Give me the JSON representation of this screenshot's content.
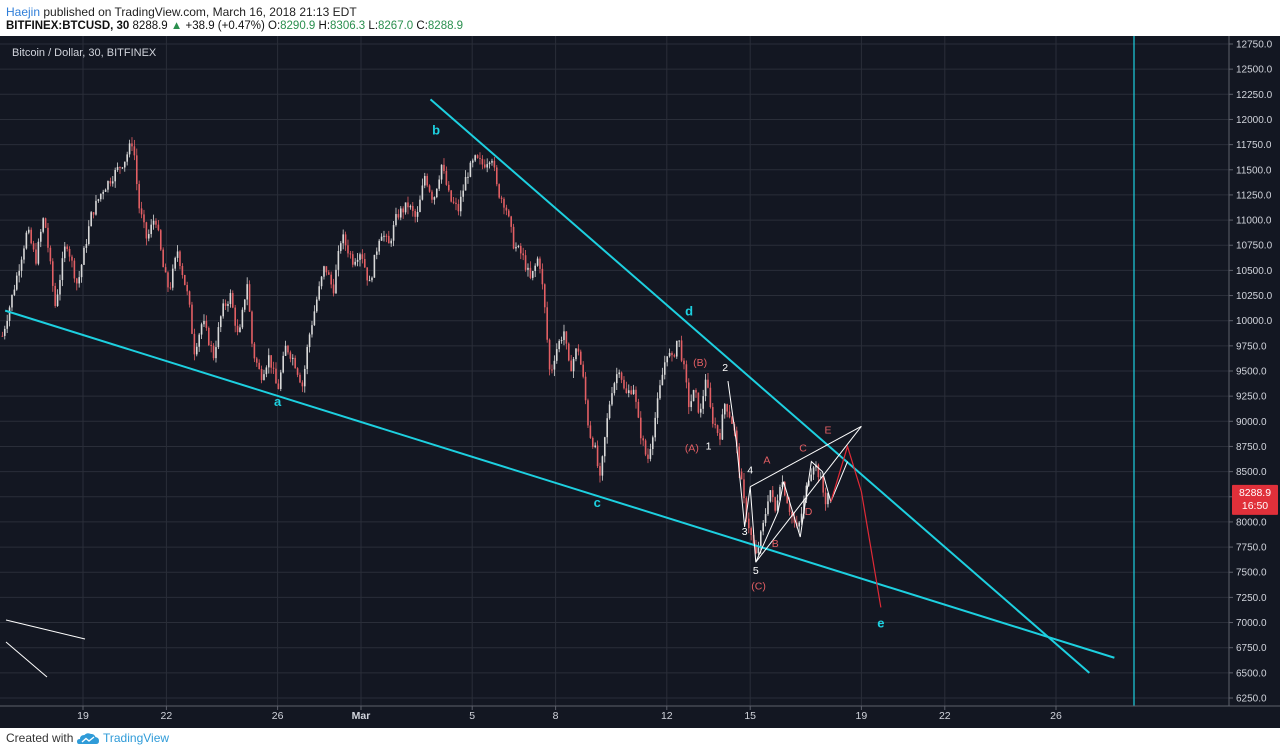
{
  "header": {
    "author": "Haejin",
    "published": "published on TradingView.com, March 16, 2018 21:13 EDT",
    "symbol": "BITFINEX:BTCUSD, 30",
    "last": "8288.9",
    "change": "+38.9 (+0.47%)",
    "o_label": "O:",
    "o": "8290.9",
    "h_label": "H:",
    "h": "8306.3",
    "l_label": "L:",
    "l": "8267.0",
    "c_label": "C:",
    "c": "8288.9"
  },
  "footer": {
    "created": "Created with",
    "brand": "TradingView"
  },
  "colors": {
    "background": "#131722",
    "grid": "#2a2e39",
    "up": "#d9d9d9",
    "down": "#e35f64",
    "trendline": "#1dd0e0",
    "wave": "#ffffff",
    "projection": "#e02a37",
    "price_badge": "#e0303a"
  },
  "chart_data": {
    "type": "candlestick",
    "title": "Bitcoin / Dollar, 30, BITFINEX",
    "price_axis": {
      "min": 6250,
      "max": 12750,
      "step": 250,
      "ticks": [
        "12750.0",
        "12500.0",
        "12250.0",
        "12000.0",
        "11750.0",
        "11500.0",
        "11250.0",
        "11000.0",
        "10750.0",
        "10500.0",
        "10250.0",
        "10000.0",
        "9750.0",
        "9500.0",
        "9250.0",
        "9000.0",
        "8750.0",
        "8500.0",
        "8250.0",
        "8000.0",
        "7750.0",
        "7500.0",
        "7250.0",
        "7000.0",
        "6750.0",
        "6500.0",
        "6250.0"
      ]
    },
    "time_axis": {
      "ticks": [
        {
          "label": "19",
          "day": 19
        },
        {
          "label": "22",
          "day": 22
        },
        {
          "label": "26",
          "day": 26
        },
        {
          "label": "Mar",
          "day": 29
        },
        {
          "label": "5",
          "day": 33
        },
        {
          "label": "8",
          "day": 36
        },
        {
          "label": "12",
          "day": 40
        },
        {
          "label": "15",
          "day": 43
        },
        {
          "label": "19",
          "day": 47
        },
        {
          "label": "22",
          "day": 50
        },
        {
          "label": "26",
          "day": 54
        }
      ]
    },
    "price_path": [
      [
        16.1,
        9850
      ],
      [
        16.5,
        10300
      ],
      [
        17.0,
        10900
      ],
      [
        17.3,
        10600
      ],
      [
        17.6,
        11050
      ],
      [
        18.0,
        10150
      ],
      [
        18.4,
        10800
      ],
      [
        18.8,
        10350
      ],
      [
        19.3,
        11050
      ],
      [
        19.7,
        11300
      ],
      [
        20.1,
        11450
      ],
      [
        20.5,
        11600
      ],
      [
        20.8,
        11800
      ],
      [
        21.0,
        11150
      ],
      [
        21.3,
        10800
      ],
      [
        21.6,
        11050
      ],
      [
        21.9,
        10500
      ],
      [
        22.1,
        10300
      ],
      [
        22.4,
        10700
      ],
      [
        22.8,
        10200
      ],
      [
        23.0,
        9700
      ],
      [
        23.3,
        10000
      ],
      [
        23.7,
        9650
      ],
      [
        24.0,
        10100
      ],
      [
        24.3,
        10250
      ],
      [
        24.6,
        9800
      ],
      [
        24.9,
        10400
      ],
      [
        25.1,
        9700
      ],
      [
        25.4,
        9450
      ],
      [
        25.7,
        9650
      ],
      [
        26.0,
        9300
      ],
      [
        26.3,
        9750
      ],
      [
        26.6,
        9600
      ],
      [
        26.9,
        9350
      ],
      [
        27.1,
        9800
      ],
      [
        27.4,
        10200
      ],
      [
        27.7,
        10550
      ],
      [
        28.0,
        10300
      ],
      [
        28.3,
        10850
      ],
      [
        28.7,
        10600
      ],
      [
        29.0,
        10700
      ],
      [
        29.3,
        10350
      ],
      [
        29.7,
        10900
      ],
      [
        30.0,
        10750
      ],
      [
        30.3,
        11050
      ],
      [
        30.7,
        11150
      ],
      [
        31.0,
        11000
      ],
      [
        31.3,
        11450
      ],
      [
        31.6,
        11200
      ],
      [
        31.9,
        11550
      ],
      [
        32.2,
        11200
      ],
      [
        32.5,
        11100
      ],
      [
        32.8,
        11450
      ],
      [
        33.1,
        11600
      ],
      [
        33.4,
        11550
      ],
      [
        33.7,
        11650
      ],
      [
        33.9,
        11300
      ],
      [
        34.2,
        11150
      ],
      [
        34.5,
        10750
      ],
      [
        34.8,
        10650
      ],
      [
        35.1,
        10400
      ],
      [
        35.4,
        10650
      ],
      [
        35.6,
        10150
      ],
      [
        35.8,
        9450
      ],
      [
        36.0,
        9700
      ],
      [
        36.3,
        9900
      ],
      [
        36.5,
        9500
      ],
      [
        36.8,
        9750
      ],
      [
        37.0,
        9400
      ],
      [
        37.2,
        8900
      ],
      [
        37.4,
        8750
      ],
      [
        37.6,
        8400
      ],
      [
        37.8,
        8900
      ],
      [
        38.0,
        9300
      ],
      [
        38.3,
        9550
      ],
      [
        38.5,
        9250
      ],
      [
        38.8,
        9350
      ],
      [
        39.0,
        8950
      ],
      [
        39.3,
        8600
      ],
      [
        39.5,
        8900
      ],
      [
        39.8,
        9400
      ],
      [
        40.0,
        9700
      ],
      [
        40.2,
        9600
      ],
      [
        40.4,
        9850
      ],
      [
        40.6,
        9550
      ],
      [
        40.8,
        9150
      ],
      [
        41.0,
        9300
      ],
      [
        41.2,
        9050
      ],
      [
        41.4,
        9450
      ],
      [
        41.6,
        9050
      ],
      [
        41.9,
        8850
      ],
      [
        42.1,
        9200
      ],
      [
        42.4,
        8950
      ],
      [
        42.6,
        8550
      ],
      [
        42.8,
        8150
      ],
      [
        43.0,
        7900
      ],
      [
        43.2,
        7650
      ],
      [
        43.5,
        8000
      ],
      [
        43.7,
        8350
      ],
      [
        43.9,
        8100
      ],
      [
        44.1,
        8450
      ],
      [
        44.3,
        8250
      ],
      [
        44.5,
        8050
      ],
      [
        44.7,
        7900
      ],
      [
        44.9,
        8150
      ],
      [
        45.1,
        8450
      ],
      [
        45.3,
        8600
      ],
      [
        45.5,
        8450
      ],
      [
        45.7,
        8200
      ],
      [
        45.8,
        8290
      ]
    ],
    "trendlines": [
      {
        "name": "upper",
        "from": [
          31.5,
          12200
        ],
        "to": [
          55.2,
          6500
        ]
      },
      {
        "name": "lower",
        "from": [
          16.2,
          10100
        ],
        "to": [
          56.1,
          6650
        ]
      }
    ],
    "wave_path": [
      [
        42.2,
        9400
      ],
      [
        42.5,
        8800
      ],
      [
        42.8,
        7950
      ],
      [
        43.0,
        8350
      ],
      [
        43.2,
        7600
      ],
      [
        44.0,
        8100
      ],
      [
        44.2,
        8400
      ],
      [
        44.8,
        7850
      ],
      [
        45.2,
        8600
      ],
      [
        45.6,
        8500
      ],
      [
        45.9,
        8200
      ],
      [
        46.5,
        8600
      ]
    ],
    "wave_lines": [
      {
        "from": [
          43.2,
          7600
        ],
        "to": [
          47.0,
          8950
        ]
      },
      {
        "from": [
          43.0,
          8350
        ],
        "to": [
          47.0,
          8950
        ]
      }
    ],
    "projection_path": [
      [
        45.9,
        8200
      ],
      [
        46.5,
        8750
      ],
      [
        47.0,
        8300
      ],
      [
        47.7,
        7150
      ]
    ],
    "labels": [
      {
        "text": "b",
        "day": 31.7,
        "price": 11850,
        "color": "cyan"
      },
      {
        "text": "a",
        "day": 26.0,
        "price": 9150,
        "color": "cyan"
      },
      {
        "text": "c",
        "day": 37.5,
        "price": 8150,
        "color": "cyan"
      },
      {
        "text": "d",
        "day": 40.8,
        "price": 10050,
        "color": "cyan"
      },
      {
        "text": "e",
        "day": 47.7,
        "price": 6950,
        "color": "cyan"
      },
      {
        "text": "(B)",
        "day": 41.2,
        "price": 9550,
        "color": "red"
      },
      {
        "text": "2",
        "day": 42.1,
        "price": 9500,
        "color": "white"
      },
      {
        "text": "1",
        "day": 41.5,
        "price": 8720,
        "color": "white"
      },
      {
        "text": "(A)",
        "day": 40.9,
        "price": 8700,
        "color": "red"
      },
      {
        "text": "4",
        "day": 43.0,
        "price": 8480,
        "color": "white"
      },
      {
        "text": "A",
        "day": 43.6,
        "price": 8580,
        "color": "red"
      },
      {
        "text": "C",
        "day": 44.9,
        "price": 8700,
        "color": "red"
      },
      {
        "text": "E",
        "day": 45.8,
        "price": 8880,
        "color": "red"
      },
      {
        "text": "D",
        "day": 45.1,
        "price": 8070,
        "color": "red"
      },
      {
        "text": "3",
        "day": 42.8,
        "price": 7870,
        "color": "white"
      },
      {
        "text": "B",
        "day": 43.9,
        "price": 7750,
        "color": "red"
      },
      {
        "text": "5",
        "day": 43.2,
        "price": 7480,
        "color": "white"
      },
      {
        "text": "(C)",
        "day": 43.3,
        "price": 7330,
        "color": "red"
      }
    ],
    "last_price": "8288.9",
    "countdown": "16:50",
    "grid": true
  }
}
